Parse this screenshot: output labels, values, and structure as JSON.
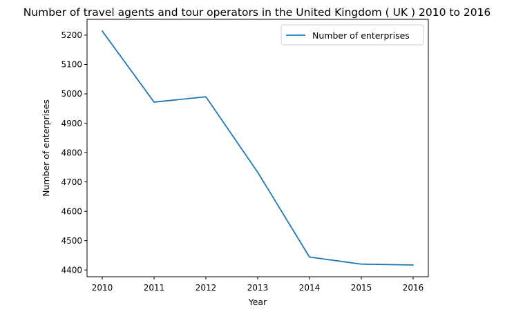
{
  "chart_data": {
    "type": "line",
    "title": "Number of travel agents and tour operators in the United Kingdom ( UK ) 2010 to 2016",
    "xlabel": "Year",
    "ylabel": "Number of enterprises",
    "x": [
      "2010",
      "2011",
      "2012",
      "2013",
      "2014",
      "2015",
      "2016"
    ],
    "series": [
      {
        "name": "Number of enterprises",
        "values": [
          5214,
          4972,
          4990,
          4733,
          4444,
          4420,
          4417
        ],
        "color": "#1f77b4"
      }
    ],
    "yticks": [
      "4400",
      "4500",
      "4600",
      "4700",
      "4800",
      "4900",
      "5000",
      "5100",
      "5200"
    ],
    "ylim": [
      4377,
      5254
    ],
    "grid": false,
    "legend": "top-right"
  }
}
